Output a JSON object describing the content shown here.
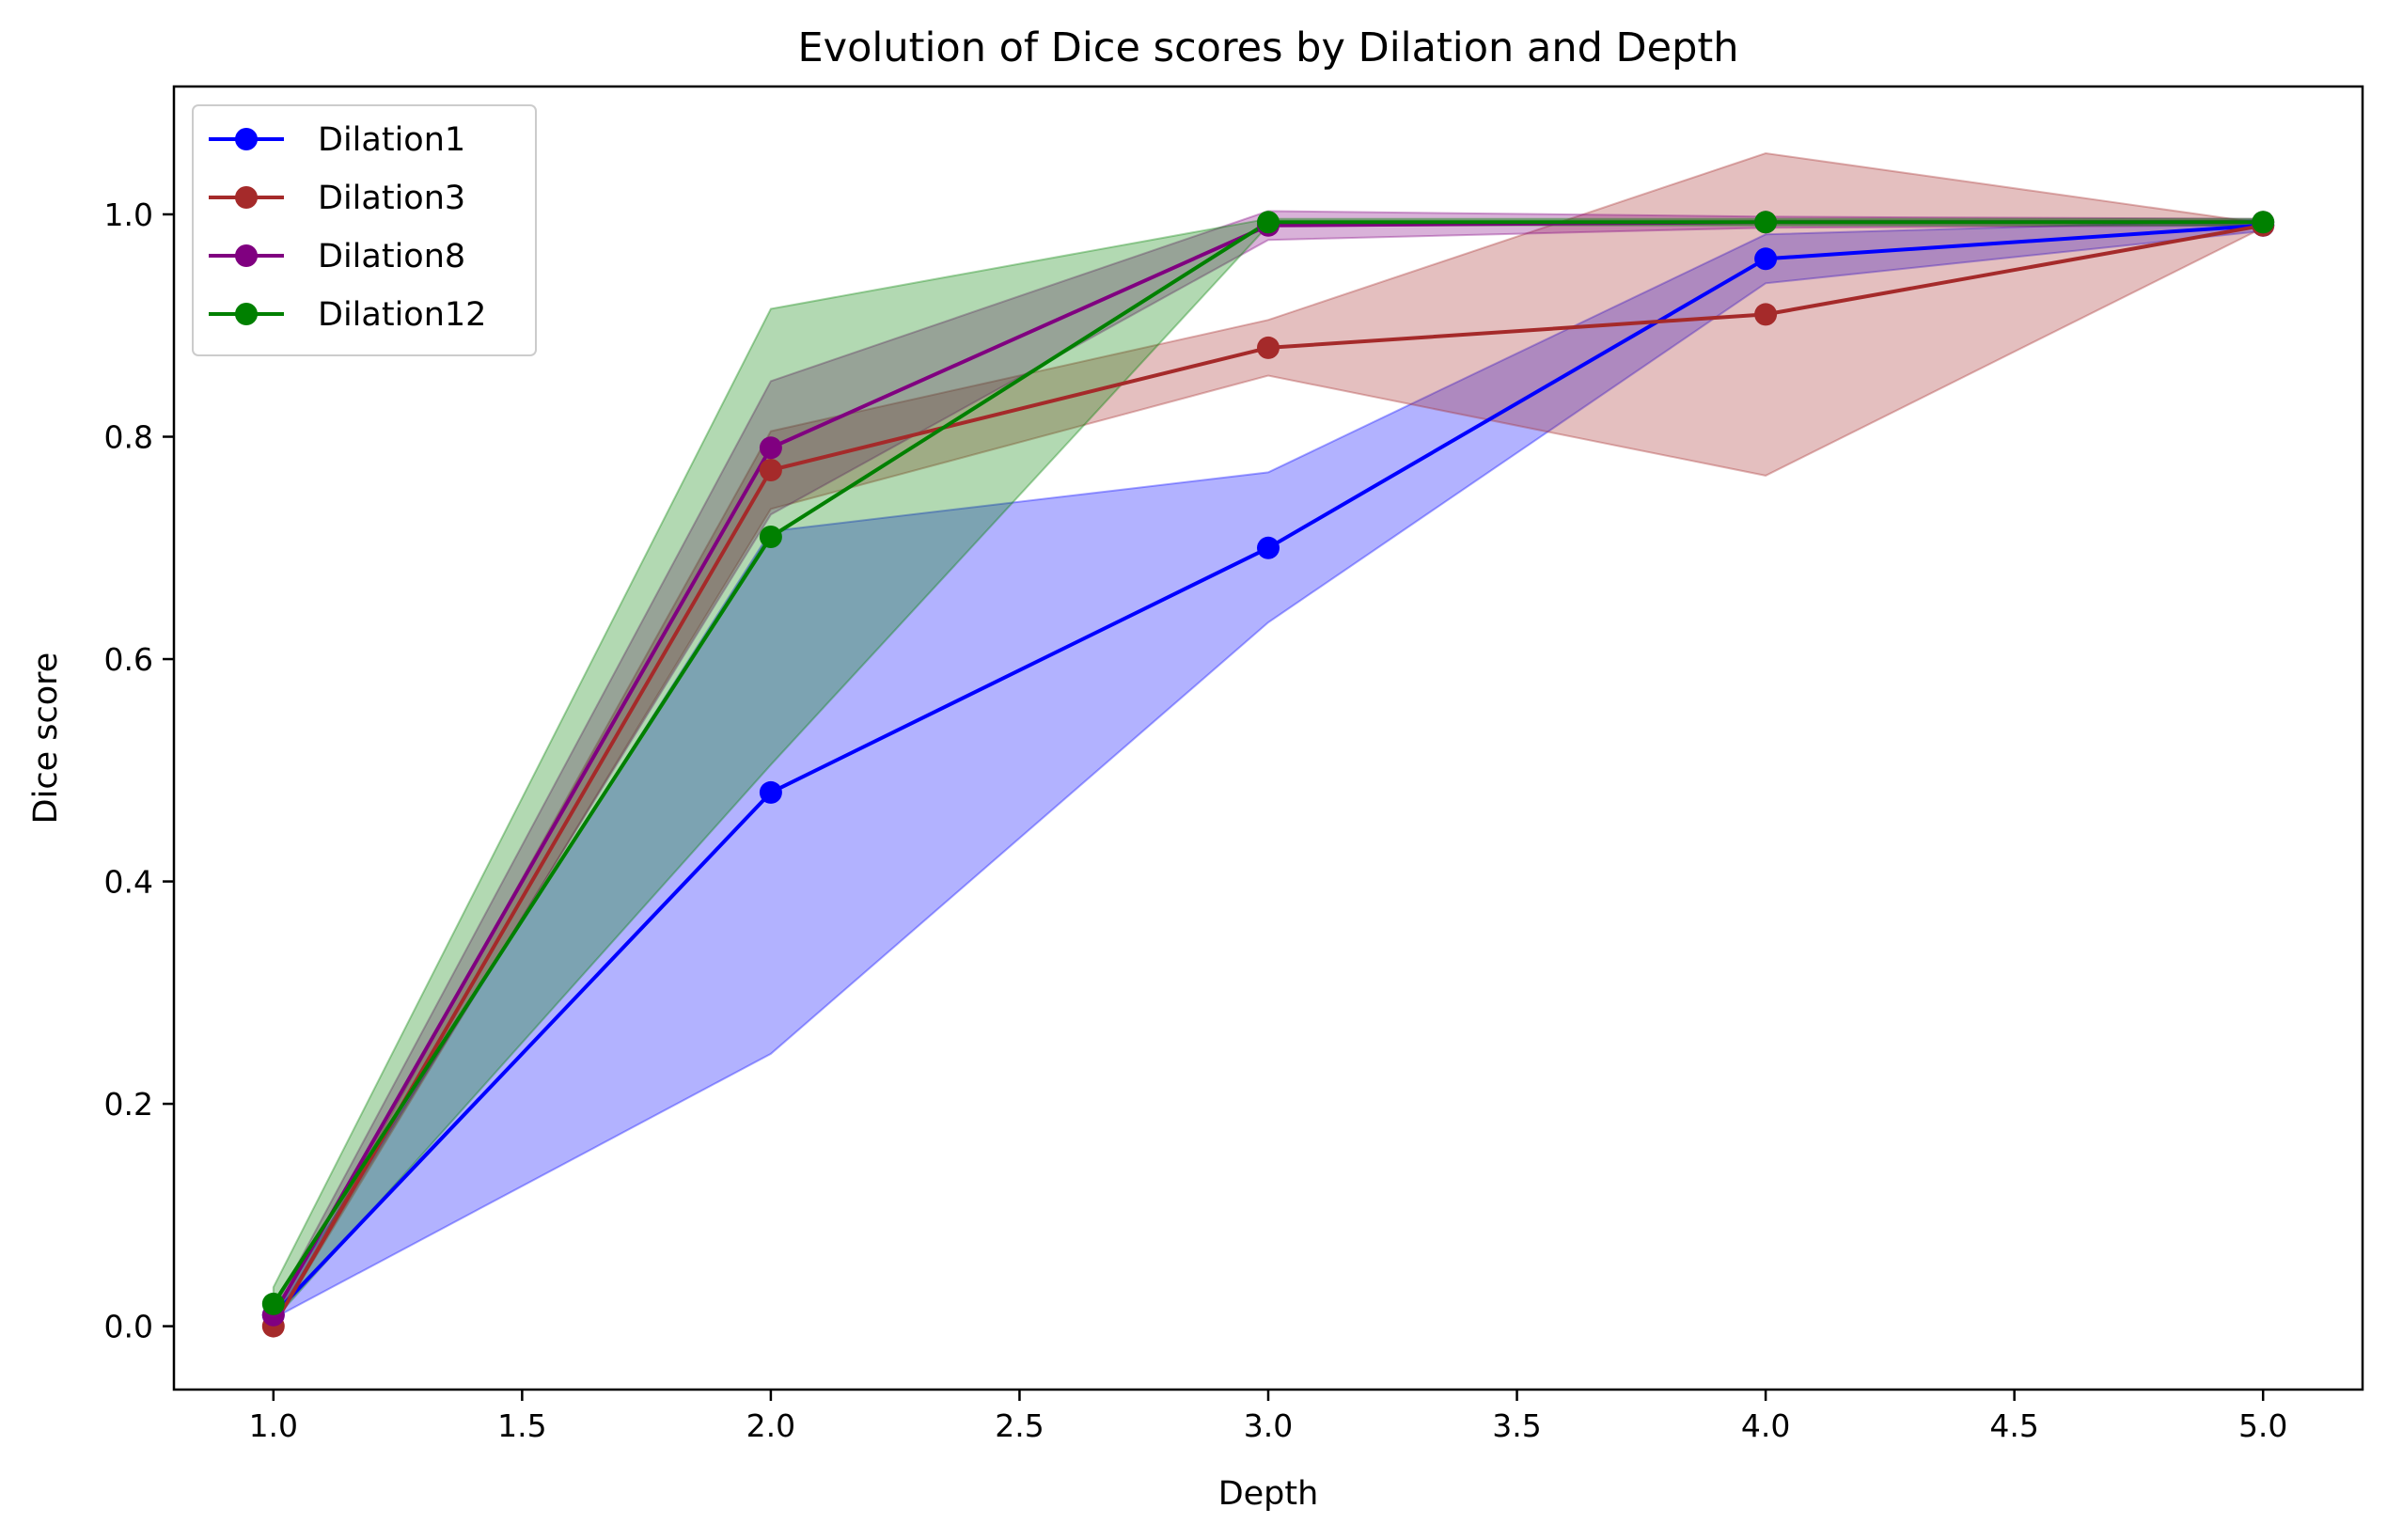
{
  "chart_data": {
    "type": "line",
    "title": "Evolution of Dice scores by Dilation and Depth",
    "xlabel": "Depth",
    "ylabel": "Dice score",
    "x": [
      1.0,
      2.0,
      3.0,
      4.0,
      5.0
    ],
    "xlim": [
      0.8,
      5.2
    ],
    "ylim": [
      -0.057,
      1.115
    ],
    "xticks": [
      1.0,
      1.5,
      2.0,
      2.5,
      3.0,
      3.5,
      4.0,
      4.5,
      5.0
    ],
    "xtick_labels": [
      "1.0",
      "1.5",
      "2.0",
      "2.5",
      "3.0",
      "3.5",
      "4.0",
      "4.5",
      "5.0"
    ],
    "yticks": [
      0.0,
      0.2,
      0.4,
      0.6,
      0.8,
      1.0
    ],
    "ytick_labels": [
      "0.0",
      "0.2",
      "0.4",
      "0.6",
      "0.8",
      "1.0"
    ],
    "grid": false,
    "legend_position": "upper-left",
    "series": [
      {
        "name": "Dilation1",
        "color": "#0000ff",
        "values": [
          0.01,
          0.48,
          0.7,
          0.96,
          0.99
        ],
        "lower": [
          0.007,
          0.245,
          0.633,
          0.938,
          0.985
        ],
        "upper": [
          0.013,
          0.715,
          0.768,
          0.982,
          0.995
        ]
      },
      {
        "name": "Dilation3",
        "color": "#a52a2a",
        "values": [
          0.0,
          0.77,
          0.88,
          0.91,
          0.99
        ],
        "lower": [
          0.0,
          0.735,
          0.855,
          0.765,
          0.988
        ],
        "upper": [
          0.0,
          0.805,
          0.905,
          1.055,
          0.992
        ]
      },
      {
        "name": "Dilation8",
        "color": "#800080",
        "values": [
          0.01,
          0.79,
          0.99,
          0.993,
          0.993
        ],
        "lower": [
          0.005,
          0.73,
          0.977,
          0.988,
          0.99
        ],
        "upper": [
          0.015,
          0.85,
          1.003,
          0.998,
          0.996
        ]
      },
      {
        "name": "Dilation12",
        "color": "#008000",
        "values": [
          0.02,
          0.71,
          0.993,
          0.993,
          0.993
        ],
        "lower": [
          0.005,
          0.505,
          0.99,
          0.99,
          0.99
        ],
        "upper": [
          0.035,
          0.915,
          0.996,
          0.996,
          0.996
        ]
      }
    ]
  }
}
